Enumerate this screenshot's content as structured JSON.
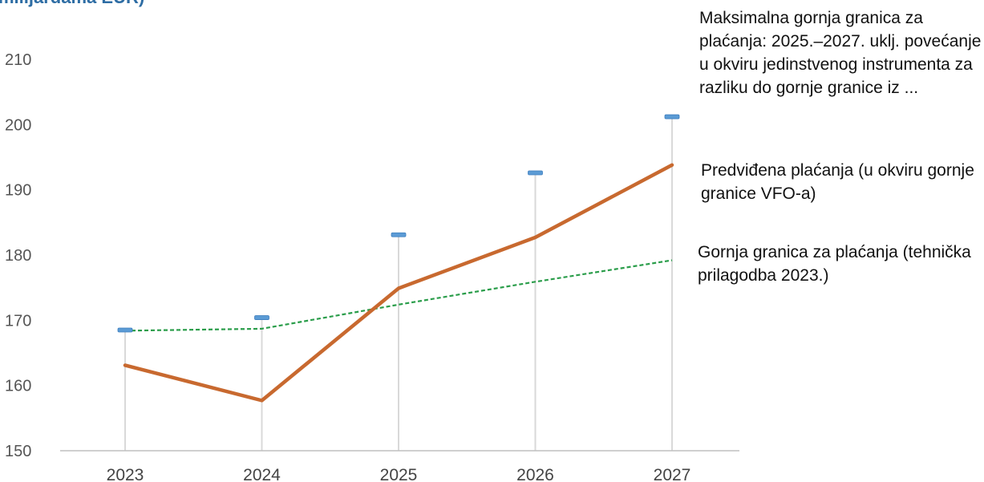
{
  "header": {
    "title_fragment": "milijardama EUR)"
  },
  "colors": {
    "title": "#2e6da4",
    "payments_line": "#c8692f",
    "ceiling_line": "#2a9d4a",
    "max_ceiling_marker": "#5b9bd5",
    "stem": "#d9d9d9",
    "axis": "#bfbfbf"
  },
  "chart_data": {
    "type": "line",
    "categories": [
      "2023",
      "2024",
      "2025",
      "2026",
      "2027"
    ],
    "ylim": [
      150,
      210
    ],
    "yticks": [
      150,
      160,
      170,
      180,
      190,
      200,
      210
    ],
    "ytick_labels": [
      "150",
      "160",
      "170",
      "180",
      "190",
      "200",
      "210"
    ],
    "grid": false,
    "series": [
      {
        "key": "max_ceiling",
        "style": "marker",
        "values": [
          168.5,
          170.4,
          183.1,
          192.6,
          201.2
        ]
      },
      {
        "key": "planned_payments",
        "style": "solid",
        "values": [
          163.1,
          157.7,
          174.9,
          182.7,
          193.8
        ]
      },
      {
        "key": "ceiling_technical_adjustment",
        "style": "dashed",
        "values": [
          168.4,
          168.7,
          172.4,
          175.9,
          179.2
        ]
      }
    ]
  },
  "annotations": {
    "max_ceiling": "Maksimalna gornja granica za plaćanja: 2025.–2027. uklj. povećanje u okviru jedinstvenog instrumenta za razliku do gornje granice iz ...",
    "planned_payments": "Predviđena plaćanja (u okviru gornje granice VFO-a)",
    "ceiling": "Gornja granica za plaćanja (tehnička prilagodba 2023.)"
  }
}
